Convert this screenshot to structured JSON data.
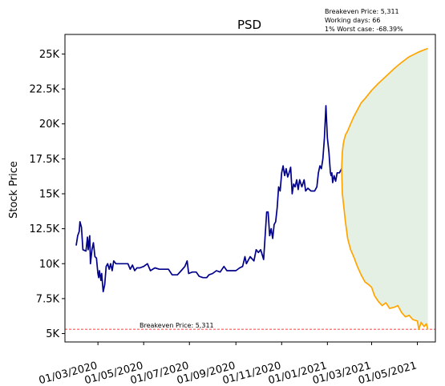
{
  "chart_data": {
    "type": "line",
    "title": "PSD",
    "xlabel": "",
    "ylabel": "Stock Price",
    "x_range": [
      "2020-01-17",
      "2021-05-25"
    ],
    "ylim": [
      4400,
      26400
    ],
    "grid": false,
    "y_ticks": [
      {
        "value": 5000,
        "label": "5K"
      },
      {
        "value": 7500,
        "label": "7.5K"
      },
      {
        "value": 10000,
        "label": "10K"
      },
      {
        "value": 12500,
        "label": "12.5K"
      },
      {
        "value": 15000,
        "label": "15K"
      },
      {
        "value": 17500,
        "label": "17.5K"
      },
      {
        "value": 20000,
        "label": "20K"
      },
      {
        "value": 22500,
        "label": "22.5K"
      },
      {
        "value": 25000,
        "label": "25K"
      }
    ],
    "x_ticks": [
      {
        "date": "2020-03-01",
        "label": "01/03/2020"
      },
      {
        "date": "2020-05-01",
        "label": "01/05/2020"
      },
      {
        "date": "2020-07-01",
        "label": "01/07/2020"
      },
      {
        "date": "2020-09-01",
        "label": "01/09/2020"
      },
      {
        "date": "2020-11-01",
        "label": "01/11/2020"
      },
      {
        "date": "2021-01-01",
        "label": "01/01/2021"
      },
      {
        "date": "2021-03-01",
        "label": "01/03/2021"
      },
      {
        "date": "2021-05-01",
        "label": "01/05/2021"
      }
    ],
    "series": [
      {
        "color": "#00008b",
        "points": [
          [
            "2020-02-01",
            11300
          ],
          [
            "2020-02-03",
            12000
          ],
          [
            "2020-02-05",
            12300
          ],
          [
            "2020-02-06",
            13000
          ],
          [
            "2020-02-08",
            12600
          ],
          [
            "2020-02-10",
            11000
          ],
          [
            "2020-02-14",
            10900
          ],
          [
            "2020-02-16",
            11900
          ],
          [
            "2020-02-17",
            11000
          ],
          [
            "2020-02-19",
            12000
          ],
          [
            "2020-02-20",
            10000
          ],
          [
            "2020-02-22",
            11000
          ],
          [
            "2020-02-24",
            11500
          ],
          [
            "2020-02-26",
            10500
          ],
          [
            "2020-02-28",
            10400
          ],
          [
            "2020-03-01",
            9300
          ],
          [
            "2020-03-02",
            9000
          ],
          [
            "2020-03-03",
            9500
          ],
          [
            "2020-03-05",
            8800
          ],
          [
            "2020-03-06",
            9300
          ],
          [
            "2020-03-08",
            8000
          ],
          [
            "2020-03-10",
            8500
          ],
          [
            "2020-03-12",
            9800
          ],
          [
            "2020-03-14",
            10000
          ],
          [
            "2020-03-16",
            9600
          ],
          [
            "2020-03-18",
            10000
          ],
          [
            "2020-03-20",
            9500
          ],
          [
            "2020-03-22",
            10200
          ],
          [
            "2020-03-25",
            10000
          ],
          [
            "2020-04-01",
            10000
          ],
          [
            "2020-04-10",
            10000
          ],
          [
            "2020-04-13",
            9600
          ],
          [
            "2020-04-16",
            9900
          ],
          [
            "2020-04-19",
            9500
          ],
          [
            "2020-04-22",
            9700
          ],
          [
            "2020-04-26",
            9700
          ],
          [
            "2020-05-01",
            9800
          ],
          [
            "2020-05-06",
            10000
          ],
          [
            "2020-05-10",
            9500
          ],
          [
            "2020-05-16",
            9700
          ],
          [
            "2020-05-22",
            9600
          ],
          [
            "2020-05-28",
            9600
          ],
          [
            "2020-06-03",
            9600
          ],
          [
            "2020-06-08",
            9200
          ],
          [
            "2020-06-15",
            9200
          ],
          [
            "2020-06-20",
            9500
          ],
          [
            "2020-06-25",
            9800
          ],
          [
            "2020-06-28",
            10200
          ],
          [
            "2020-06-30",
            9300
          ],
          [
            "2020-07-05",
            9400
          ],
          [
            "2020-07-10",
            9400
          ],
          [
            "2020-07-14",
            9100
          ],
          [
            "2020-07-19",
            9000
          ],
          [
            "2020-07-24",
            9000
          ],
          [
            "2020-07-27",
            9200
          ],
          [
            "2020-08-01",
            9300
          ],
          [
            "2020-08-06",
            9500
          ],
          [
            "2020-08-11",
            9400
          ],
          [
            "2020-08-16",
            9800
          ],
          [
            "2020-08-20",
            9500
          ],
          [
            "2020-08-26",
            9500
          ],
          [
            "2020-09-01",
            9500
          ],
          [
            "2020-09-06",
            9700
          ],
          [
            "2020-09-10",
            9800
          ],
          [
            "2020-09-13",
            10500
          ],
          [
            "2020-09-15",
            10000
          ],
          [
            "2020-09-20",
            10500
          ],
          [
            "2020-09-25",
            10200
          ],
          [
            "2020-09-28",
            11000
          ],
          [
            "2020-10-01",
            10800
          ],
          [
            "2020-10-04",
            11000
          ],
          [
            "2020-10-08",
            10300
          ],
          [
            "2020-10-10",
            12000
          ],
          [
            "2020-10-12",
            13700
          ],
          [
            "2020-10-14",
            13700
          ],
          [
            "2020-10-16",
            12000
          ],
          [
            "2020-10-18",
            12500
          ],
          [
            "2020-10-20",
            11800
          ],
          [
            "2020-10-22",
            12800
          ],
          [
            "2020-10-24",
            13000
          ],
          [
            "2020-10-26",
            14000
          ],
          [
            "2020-10-28",
            15500
          ],
          [
            "2020-10-30",
            15200
          ],
          [
            "2020-11-01",
            16500
          ],
          [
            "2020-11-03",
            17000
          ],
          [
            "2020-11-05",
            16300
          ],
          [
            "2020-11-07",
            16800
          ],
          [
            "2020-11-09",
            16200
          ],
          [
            "2020-11-11",
            16500
          ],
          [
            "2020-11-13",
            16900
          ],
          [
            "2020-11-15",
            15000
          ],
          [
            "2020-11-17",
            15700
          ],
          [
            "2020-11-19",
            15500
          ],
          [
            "2020-11-21",
            16000
          ],
          [
            "2020-11-23",
            15300
          ],
          [
            "2020-11-25",
            16000
          ],
          [
            "2020-11-28",
            15500
          ],
          [
            "2020-12-01",
            16000
          ],
          [
            "2020-12-03",
            15200
          ],
          [
            "2020-12-06",
            15400
          ],
          [
            "2020-12-10",
            15200
          ],
          [
            "2020-12-15",
            15200
          ],
          [
            "2020-12-18",
            15500
          ],
          [
            "2020-12-20",
            16500
          ],
          [
            "2020-12-22",
            17000
          ],
          [
            "2020-12-24",
            16800
          ],
          [
            "2020-12-26",
            17500
          ],
          [
            "2020-12-28",
            19000
          ],
          [
            "2020-12-30",
            21300
          ],
          [
            "2021-01-01",
            19000
          ],
          [
            "2021-01-03",
            18000
          ],
          [
            "2021-01-05",
            16500
          ],
          [
            "2021-01-06",
            16300
          ],
          [
            "2021-01-07",
            16500
          ],
          [
            "2021-01-08",
            15800
          ],
          [
            "2021-01-10",
            16300
          ],
          [
            "2021-01-12",
            15900
          ],
          [
            "2021-01-14",
            16500
          ],
          [
            "2021-01-17",
            16500
          ],
          [
            "2021-01-20",
            16800
          ]
        ]
      },
      {
        "color": "#ffa500",
        "points": [
          [
            "2021-01-20",
            16800
          ],
          [
            "2021-01-21",
            18000
          ],
          [
            "2021-01-22",
            18500
          ],
          [
            "2021-01-23",
            18800
          ],
          [
            "2021-01-25",
            19200
          ],
          [
            "2021-01-28",
            19500
          ],
          [
            "2021-02-01",
            20000
          ],
          [
            "2021-02-05",
            20500
          ],
          [
            "2021-02-10",
            21000
          ],
          [
            "2021-02-15",
            21500
          ],
          [
            "2021-02-20",
            21800
          ],
          [
            "2021-03-01",
            22400
          ],
          [
            "2021-03-10",
            22900
          ],
          [
            "2021-03-20",
            23400
          ],
          [
            "2021-04-01",
            24000
          ],
          [
            "2021-04-10",
            24400
          ],
          [
            "2021-04-20",
            24800
          ],
          [
            "2021-05-01",
            25100
          ],
          [
            "2021-05-10",
            25300
          ],
          [
            "2021-05-15",
            25400
          ]
        ]
      },
      {
        "color": "#ffa500",
        "points": [
          [
            "2021-01-20",
            16800
          ],
          [
            "2021-01-21",
            15000
          ],
          [
            "2021-01-23",
            14000
          ],
          [
            "2021-01-25",
            13000
          ],
          [
            "2021-01-28",
            11800
          ],
          [
            "2021-02-01",
            11000
          ],
          [
            "2021-02-05",
            10500
          ],
          [
            "2021-02-10",
            9800
          ],
          [
            "2021-02-15",
            9200
          ],
          [
            "2021-02-20",
            8700
          ],
          [
            "2021-02-25",
            8500
          ],
          [
            "2021-03-01",
            8300
          ],
          [
            "2021-03-05",
            7700
          ],
          [
            "2021-03-10",
            7300
          ],
          [
            "2021-03-15",
            7000
          ],
          [
            "2021-03-20",
            7200
          ],
          [
            "2021-03-25",
            6800
          ],
          [
            "2021-04-01",
            6900
          ],
          [
            "2021-04-05",
            7000
          ],
          [
            "2021-04-10",
            6500
          ],
          [
            "2021-04-15",
            6200
          ],
          [
            "2021-04-20",
            6300
          ],
          [
            "2021-04-25",
            6000
          ],
          [
            "2021-05-01",
            5900
          ],
          [
            "2021-05-03",
            5300
          ],
          [
            "2021-05-06",
            5800
          ],
          [
            "2021-05-10",
            5500
          ],
          [
            "2021-05-13",
            5700
          ],
          [
            "2021-05-15",
            5300
          ]
        ]
      }
    ],
    "confidence_band": {
      "color": "#2e8b2e",
      "opacity": 0.13
    },
    "breakeven_line": {
      "value": 5311,
      "color": "#ff0000",
      "label": "Breakeven Price: 5,311"
    },
    "annotations": [
      "Breakeven Price: 5,311",
      "Working days: 66",
      "1% Worst case: -68.39%"
    ]
  }
}
